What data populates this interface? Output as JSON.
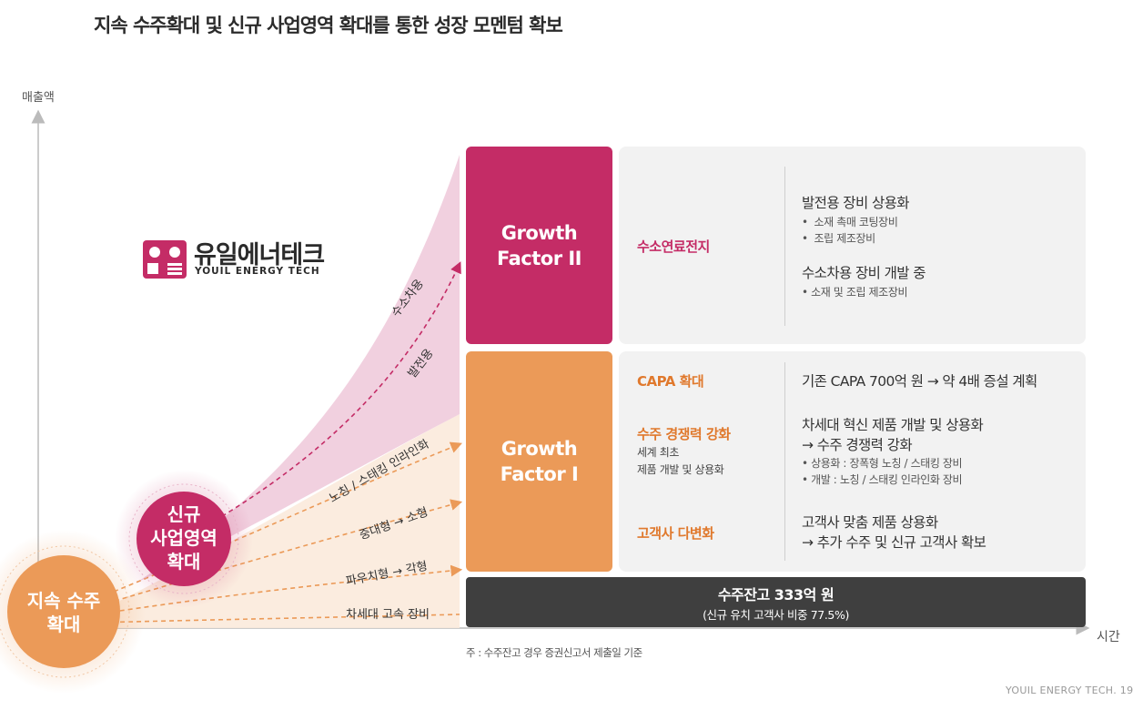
{
  "title": "지속 수주확대 및 신규 사업영역 확대를 통한 성장 모멘텀 확보",
  "axes": {
    "y_label": "매출액",
    "x_label": "시간"
  },
  "logo": {
    "korean": "유일에너테크",
    "english": "YOUIL ENERGY TECH"
  },
  "circles": {
    "new_business": [
      "신규",
      "사업영역",
      "확대"
    ],
    "order_expansion": [
      "지속 수주",
      "확대"
    ]
  },
  "arrow_labels": {
    "pink": [
      "수소차용",
      "발전용"
    ],
    "orange": [
      "노칭 / 스태킹 인라인화",
      "중대형 → 소형",
      "파우치형 → 각형",
      "차세대 고속 장비"
    ]
  },
  "growth_factor_2": {
    "label_lines": [
      "Growth",
      "Factor II"
    ],
    "category": "수소연료전지",
    "detail_1_title": "발전용 장비 상용화",
    "detail_1_bullets": [
      "소재 촉매 코팅장비",
      "조립 제조장비"
    ],
    "detail_2_title": "수소차용 장비 개발 중",
    "detail_2_bullets": [
      "소재 및 조립 제조장비"
    ]
  },
  "growth_factor_1": {
    "label_lines": [
      "Growth",
      "Factor I"
    ],
    "items": [
      {
        "category": "CAPA 확대",
        "sub": [],
        "detail_lines": [
          "기존 CAPA 700억 원 → 약 4배 증설 계획"
        ],
        "bullets": []
      },
      {
        "category": "수주 경쟁력 강화",
        "sub": [
          "세계 최초",
          "제품 개발 및 상용화"
        ],
        "detail_lines": [
          "차세대 혁신 제품 개발 및 상용화",
          "→ 수주 경쟁력 강화"
        ],
        "bullets": [
          "상용화 : 장폭형 노칭 / 스태킹 장비",
          "개발 : 노칭 / 스태킹 인라인화 장비"
        ]
      },
      {
        "category": "고객사 다변화",
        "sub": [],
        "detail_lines": [
          "고객사 맞춤 제품 상용화",
          "→ 추가 수주 및 신규 고객사 확보"
        ],
        "bullets": []
      }
    ]
  },
  "backlog": {
    "line1": "수주잔고 333억 원",
    "line2": "(신규 유치 고객사 비중 77.5%)"
  },
  "note": "주 : 수주잔고 경우 증권신고서 제출일 기준",
  "footer": "YOUIL ENERGY TECH.  19",
  "colors": {
    "pink": "#c42c66",
    "orange": "#eb9a58",
    "dark": "#3f3f3f",
    "panel": "#f2f2f2"
  }
}
